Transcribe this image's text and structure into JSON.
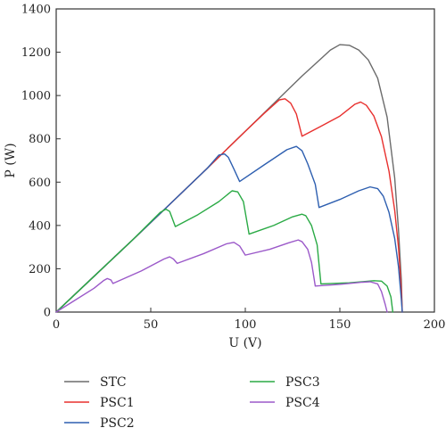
{
  "chart_data": {
    "type": "line",
    "title": "",
    "xlabel": "U (V)",
    "ylabel": "P (W)",
    "xlim": [
      0,
      200
    ],
    "ylim": [
      0,
      1400
    ],
    "xticks": [
      0,
      50,
      100,
      150,
      200
    ],
    "yticks": [
      0,
      200,
      400,
      600,
      800,
      1000,
      1200,
      1400
    ],
    "grid": false,
    "legend_position": "bottom",
    "series": [
      {
        "name": "STC",
        "color": "#6b6b6b",
        "points": [
          [
            0,
            0
          ],
          [
            20,
            165
          ],
          [
            40,
            330
          ],
          [
            60,
            497
          ],
          [
            80,
            665
          ],
          [
            100,
            835
          ],
          [
            120,
            1005
          ],
          [
            130,
            1090
          ],
          [
            140,
            1170
          ],
          [
            145,
            1210
          ],
          [
            150,
            1235
          ],
          [
            155,
            1232
          ],
          [
            160,
            1210
          ],
          [
            165,
            1165
          ],
          [
            170,
            1080
          ],
          [
            175,
            900
          ],
          [
            179,
            620
          ],
          [
            181,
            380
          ],
          [
            182.5,
            150
          ],
          [
            183,
            0
          ]
        ]
      },
      {
        "name": "PSC1",
        "color": "#e8302e",
        "points": [
          [
            0,
            0
          ],
          [
            20,
            165
          ],
          [
            40,
            330
          ],
          [
            60,
            497
          ],
          [
            80,
            665
          ],
          [
            100,
            835
          ],
          [
            110,
            918
          ],
          [
            118,
            980
          ],
          [
            121,
            985
          ],
          [
            124,
            965
          ],
          [
            127,
            915
          ],
          [
            130,
            812
          ],
          [
            140,
            858
          ],
          [
            150,
            905
          ],
          [
            158,
            960
          ],
          [
            161,
            970
          ],
          [
            164,
            955
          ],
          [
            168,
            905
          ],
          [
            172,
            810
          ],
          [
            176,
            650
          ],
          [
            179,
            470
          ],
          [
            181,
            300
          ],
          [
            182.5,
            100
          ],
          [
            183,
            0
          ]
        ]
      },
      {
        "name": "PSC2",
        "color": "#2e5fb0",
        "points": [
          [
            0,
            0
          ],
          [
            20,
            165
          ],
          [
            40,
            330
          ],
          [
            60,
            497
          ],
          [
            80,
            665
          ],
          [
            86,
            725
          ],
          [
            89,
            730
          ],
          [
            91,
            715
          ],
          [
            94,
            660
          ],
          [
            97,
            603
          ],
          [
            110,
            680
          ],
          [
            122,
            750
          ],
          [
            127,
            765
          ],
          [
            130,
            745
          ],
          [
            133,
            685
          ],
          [
            137,
            590
          ],
          [
            139,
            483
          ],
          [
            150,
            520
          ],
          [
            160,
            560
          ],
          [
            166,
            578
          ],
          [
            170,
            570
          ],
          [
            173,
            535
          ],
          [
            176,
            460
          ],
          [
            179,
            340
          ],
          [
            181,
            210
          ],
          [
            182.5,
            60
          ],
          [
            183,
            0
          ]
        ]
      },
      {
        "name": "PSC3",
        "color": "#2aaa45",
        "points": [
          [
            0,
            0
          ],
          [
            20,
            165
          ],
          [
            40,
            330
          ],
          [
            55,
            460
          ],
          [
            58,
            475
          ],
          [
            60,
            465
          ],
          [
            63,
            395
          ],
          [
            75,
            450
          ],
          [
            86,
            510
          ],
          [
            93,
            560
          ],
          [
            96,
            555
          ],
          [
            99,
            510
          ],
          [
            102,
            360
          ],
          [
            115,
            400
          ],
          [
            125,
            440
          ],
          [
            130,
            452
          ],
          [
            132,
            445
          ],
          [
            135,
            400
          ],
          [
            138,
            310
          ],
          [
            140,
            130
          ],
          [
            155,
            135
          ],
          [
            168,
            145
          ],
          [
            172,
            143
          ],
          [
            175,
            120
          ],
          [
            177,
            70
          ],
          [
            178,
            0
          ]
        ]
      },
      {
        "name": "PSC4",
        "color": "#9b59c9",
        "points": [
          [
            0,
            0
          ],
          [
            10,
            55
          ],
          [
            20,
            110
          ],
          [
            25,
            145
          ],
          [
            27,
            155
          ],
          [
            29,
            148
          ],
          [
            30,
            132
          ],
          [
            45,
            190
          ],
          [
            57,
            245
          ],
          [
            60,
            255
          ],
          [
            62,
            245
          ],
          [
            64,
            225
          ],
          [
            78,
            270
          ],
          [
            90,
            315
          ],
          [
            94,
            322
          ],
          [
            97,
            305
          ],
          [
            100,
            263
          ],
          [
            113,
            290
          ],
          [
            123,
            320
          ],
          [
            128,
            333
          ],
          [
            130,
            325
          ],
          [
            133,
            290
          ],
          [
            135,
            230
          ],
          [
            137,
            120
          ],
          [
            150,
            128
          ],
          [
            162,
            138
          ],
          [
            166,
            140
          ],
          [
            170,
            130
          ],
          [
            172,
            95
          ],
          [
            174,
            35
          ],
          [
            175,
            0
          ]
        ]
      }
    ]
  }
}
